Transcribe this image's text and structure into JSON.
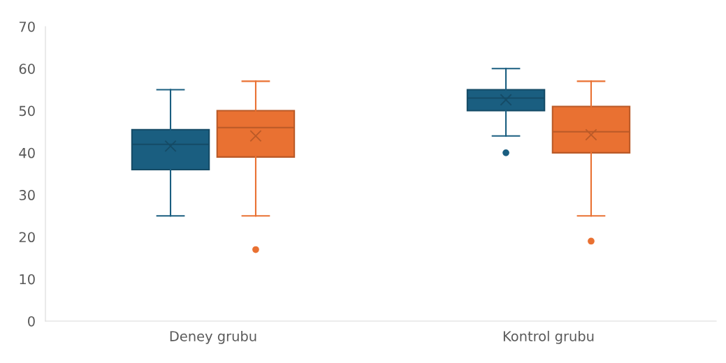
{
  "chart_data": {
    "type": "box",
    "categories": [
      "Deney grubu",
      "Kontrol grubu"
    ],
    "ylim": [
      0,
      70
    ],
    "yticks": [
      0,
      10,
      20,
      30,
      40,
      50,
      60,
      70
    ],
    "grid": false,
    "legend": false,
    "series": [
      {
        "color": "#1a5e80",
        "boxes": [
          {
            "low": 25,
            "q1": 36,
            "median": 42,
            "q3": 45.5,
            "high": 55,
            "mean": 41.6
          },
          {
            "low": 44,
            "q1": 50,
            "median": 53,
            "q3": 55,
            "high": 60,
            "mean": 52.6,
            "outliers": [
              40
            ]
          }
        ]
      },
      {
        "color": "#e97132",
        "boxes": [
          {
            "low": 25,
            "q1": 39,
            "median": 46,
            "q3": 50,
            "high": 57,
            "mean": 44,
            "outliers": [
              17
            ]
          },
          {
            "low": 25,
            "q1": 40,
            "median": 45,
            "q3": 51,
            "high": 57,
            "mean": 44.3,
            "outliers": [
              19
            ]
          }
        ]
      }
    ]
  }
}
